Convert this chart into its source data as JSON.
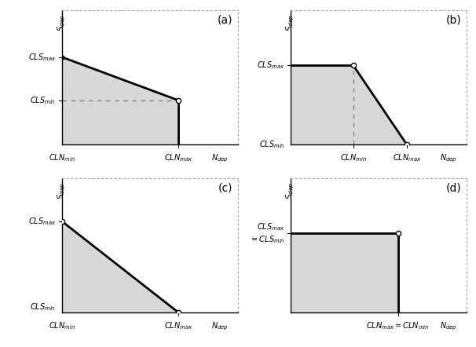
{
  "fill_color": "#d8d8d8",
  "line_color": "#000000",
  "dashed_color": "#888888",
  "bg_color": "#ffffff",
  "panel_label_fontsize": 10,
  "axis_label_fontsize": 7.5,
  "tick_label_fontsize": 7,
  "panels": {
    "a": {
      "CLNmin": 0.0,
      "CLNmax": 0.78,
      "CLSmax": 0.75,
      "CLSmin": 0.38,
      "Ndep": 1.0,
      "xlim": [
        0,
        1.18
      ],
      "ylim": [
        0,
        1.15
      ]
    },
    "b": {
      "CLNmin": 0.0,
      "CLN_knee": 0.42,
      "CLNmax": 0.78,
      "CLSmax": 0.68,
      "CLSmin": 0.0,
      "Ndep": 1.0,
      "xlim": [
        0,
        1.18
      ],
      "ylim": [
        0,
        1.15
      ]
    },
    "c": {
      "CLNmin": 0.0,
      "CLNmax": 0.78,
      "CLSmax": 0.78,
      "CLSmin": 0.0,
      "Ndep": 1.0,
      "xlim": [
        0,
        1.18
      ],
      "ylim": [
        0,
        1.15
      ]
    },
    "d": {
      "CLNval": 0.72,
      "CLSval": 0.68,
      "Ndep": 1.0,
      "xlim": [
        0,
        1.18
      ],
      "ylim": [
        0,
        1.15
      ]
    }
  }
}
